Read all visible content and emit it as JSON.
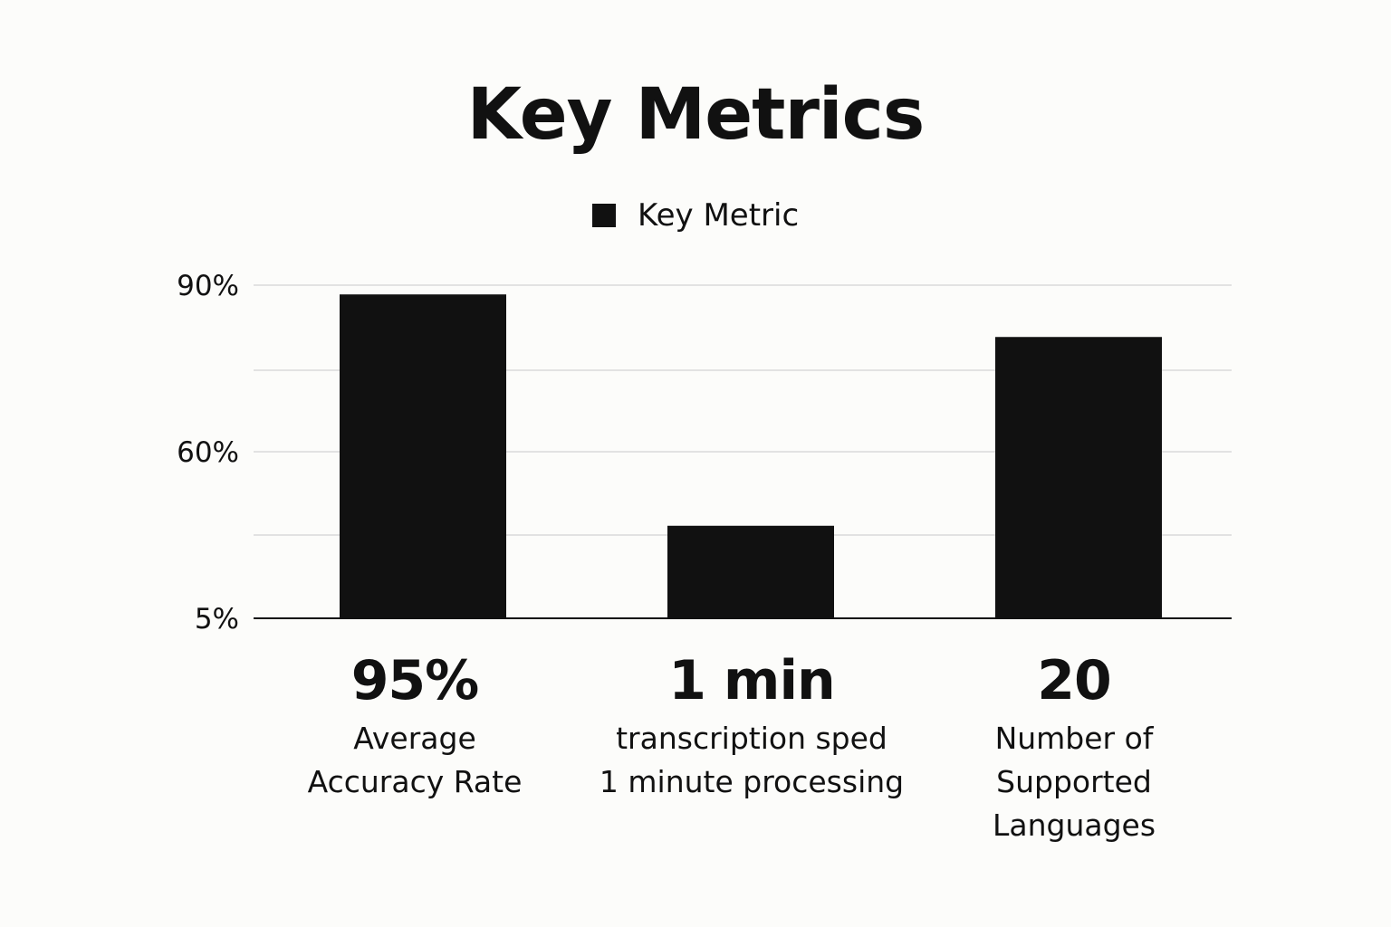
{
  "chart_data": {
    "type": "bar",
    "title": "Key Metrics",
    "legend": [
      "Key Metric"
    ],
    "legend_position": "top-center",
    "yticks": [
      "90%",
      "60%",
      "5%"
    ],
    "grid": true,
    "categories": [
      {
        "value_label": "95%",
        "label": "Average\nAccuracy Rate"
      },
      {
        "value_label": "1 min",
        "label": "transcription sped\n1 minute processing"
      },
      {
        "value_label": "20",
        "label": "Number of\nSupported\nLanguages"
      }
    ],
    "series": [
      {
        "name": "Key Metric",
        "color": "#111111",
        "values": [
          87.5,
          25,
          76
        ]
      }
    ]
  }
}
